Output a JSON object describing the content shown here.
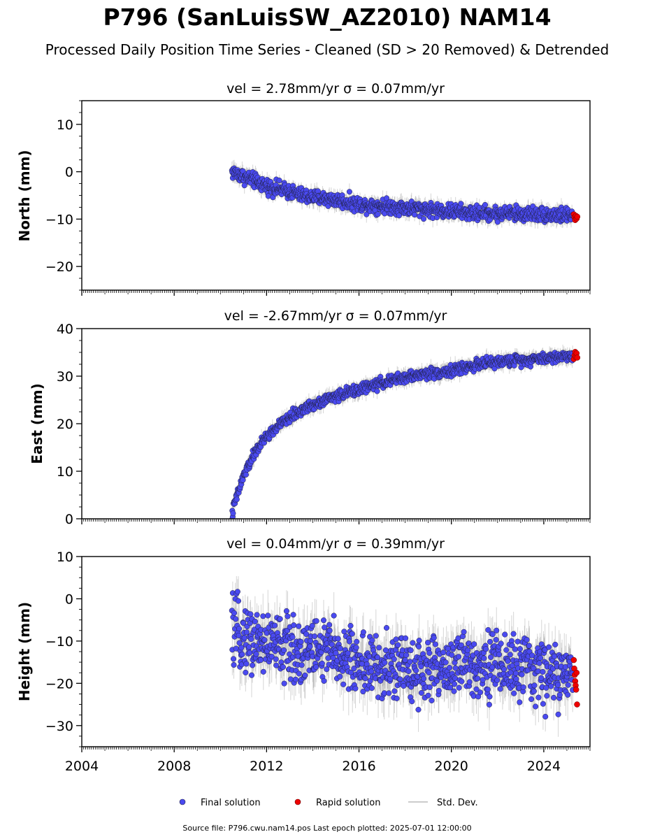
{
  "title": "P796 (SanLuisSW_AZ2010) NAM14",
  "subtitle": "Processed Daily Position Time Series - Cleaned (SD > 20 Removed) & Detrended",
  "footer": "Source file: P796.cwu.nam14.pos  Last epoch plotted: 2025-07-01 12:00:00",
  "legend": [
    {
      "label": "Final solution",
      "color": "#4a4af0",
      "kind": "dot"
    },
    {
      "label": "Rapid solution",
      "color": "#ee0000",
      "kind": "dot"
    },
    {
      "label": "Std. Dev.",
      "color": "#cccccc",
      "kind": "line"
    }
  ],
  "colors": {
    "final": "#4a4af0",
    "rapid": "#ee0000",
    "stddev": "#888888",
    "marker_edge": "#202040"
  },
  "chart_data": [
    {
      "type": "scatter",
      "panel_title": "vel = 2.78mm/yr   σ = 0.07mm/yr",
      "ylabel": "North (mm)",
      "xlim": [
        2004,
        2026
      ],
      "ylim": [
        -25,
        15
      ],
      "yticks": [
        10,
        0,
        -10,
        -20
      ],
      "ytick_labels": [
        "10",
        "0",
        "−10",
        "−20"
      ],
      "xticks": [
        2004,
        2008,
        2012,
        2016,
        2020,
        2024
      ],
      "show_xticklabels": false,
      "final_series": {
        "name": "Final solution",
        "x": [
          2010.5,
          2011.0,
          2011.5,
          2012.0,
          2012.5,
          2013.0,
          2013.5,
          2014.0,
          2014.5,
          2015.0,
          2015.5,
          2016.0,
          2016.5,
          2017.0,
          2017.5,
          2018.0,
          2018.5,
          2019.0,
          2019.5,
          2020.0,
          2020.5,
          2021.0,
          2021.5,
          2022.0,
          2022.5,
          2023.0,
          2023.5,
          2024.0,
          2024.5,
          2025.0,
          2025.25
        ],
        "y": [
          0.0,
          -1.0,
          -2.0,
          -3.0,
          -3.6,
          -4.2,
          -5.0,
          -5.4,
          -5.6,
          -6.0,
          -6.4,
          -6.9,
          -7.0,
          -7.2,
          -7.4,
          -7.6,
          -7.8,
          -8.0,
          -8.2,
          -8.3,
          -8.6,
          -8.8,
          -8.7,
          -8.9,
          -8.7,
          -9.0,
          -8.8,
          -9.0,
          -9.1,
          -9.2,
          -9.3
        ],
        "spread": 1.1,
        "sd": 1.4
      },
      "rapid_series": {
        "name": "Rapid solution",
        "x": [
          2025.3,
          2025.33,
          2025.36,
          2025.39,
          2025.42,
          2025.45
        ],
        "y": [
          -9.0,
          -9.6,
          -10.2,
          -9.3,
          -9.9,
          -9.5
        ]
      }
    },
    {
      "type": "scatter",
      "panel_title": "vel = -2.67mm/yr   σ = 0.07mm/yr",
      "ylabel": "East (mm)",
      "xlim": [
        2004,
        2026
      ],
      "ylim": [
        0,
        40
      ],
      "yticks": [
        0,
        10,
        20,
        30,
        40
      ],
      "ytick_labels": [
        "0",
        "10",
        "20",
        "30",
        "40"
      ],
      "xticks": [
        2004,
        2008,
        2012,
        2016,
        2020,
        2024
      ],
      "show_xticklabels": false,
      "final_series": {
        "name": "Final solution",
        "x": [
          2010.5,
          2010.6,
          2010.8,
          2011.0,
          2011.3,
          2011.6,
          2012.0,
          2012.5,
          2013.0,
          2013.5,
          2014.0,
          2014.5,
          2015.0,
          2015.5,
          2016.0,
          2016.5,
          2017.0,
          2017.5,
          2018.0,
          2018.5,
          2019.0,
          2019.5,
          2020.0,
          2020.5,
          2021.0,
          2021.5,
          2022.0,
          2022.5,
          2023.0,
          2023.5,
          2024.0,
          2024.5,
          2025.0,
          2025.25
        ],
        "y": [
          0.5,
          3.0,
          6.0,
          9.0,
          12.0,
          14.8,
          17.3,
          19.5,
          21.3,
          22.8,
          24.0,
          25.0,
          25.8,
          26.5,
          27.2,
          27.9,
          28.6,
          29.2,
          29.7,
          30.2,
          30.6,
          30.8,
          31.0,
          31.8,
          32.3,
          32.7,
          33.0,
          33.2,
          33.4,
          33.6,
          33.8,
          34.0,
          34.2,
          34.3
        ],
        "spread": 0.8,
        "sd": 1.3
      },
      "rapid_series": {
        "name": "Rapid solution",
        "x": [
          2025.3,
          2025.33,
          2025.36,
          2025.39,
          2025.42,
          2025.45
        ],
        "y": [
          33.6,
          34.4,
          35.1,
          34.0,
          34.8,
          33.9
        ]
      }
    },
    {
      "type": "scatter",
      "panel_title": "vel = 0.04mm/yr   σ = 0.39mm/yr",
      "ylabel": "Height (mm)",
      "xlim": [
        2004,
        2026
      ],
      "ylim": [
        -35,
        10
      ],
      "yticks": [
        10,
        0,
        -10,
        -20,
        -30
      ],
      "ytick_labels": [
        "10",
        "0",
        "−10",
        "−20",
        "−30"
      ],
      "xticks": [
        2004,
        2008,
        2012,
        2016,
        2020,
        2024
      ],
      "xtick_labels": [
        "2004",
        "2008",
        "2012",
        "2016",
        "2020",
        "2024"
      ],
      "show_xticklabels": true,
      "final_series": {
        "name": "Final solution",
        "x": [
          2010.5,
          2011.0,
          2011.5,
          2012.0,
          2012.5,
          2013.0,
          2013.5,
          2014.0,
          2014.5,
          2015.0,
          2015.5,
          2016.0,
          2016.5,
          2017.0,
          2017.5,
          2018.0,
          2018.5,
          2019.0,
          2019.5,
          2020.0,
          2020.5,
          2021.0,
          2021.5,
          2022.0,
          2022.5,
          2023.0,
          2023.5,
          2024.0,
          2024.5,
          2025.0,
          2025.25
        ],
        "y": [
          -8.0,
          -9.0,
          -10.0,
          -10.5,
          -11.0,
          -12.0,
          -12.5,
          -12.0,
          -12.5,
          -13.0,
          -14.0,
          -15.0,
          -16.0,
          -17.0,
          -16.5,
          -16.0,
          -16.5,
          -17.0,
          -16.5,
          -16.0,
          -15.5,
          -15.5,
          -15.0,
          -15.5,
          -16.0,
          -16.5,
          -17.0,
          -17.5,
          -18.0,
          -18.5,
          -19.0
        ],
        "spread": 5.5,
        "sd": 4.5
      },
      "rapid_series": {
        "name": "Rapid solution",
        "x": [
          2025.3,
          2025.32,
          2025.34,
          2025.36,
          2025.38,
          2025.4,
          2025.42,
          2025.44
        ],
        "y": [
          -14.5,
          -16.5,
          -18.0,
          -19.5,
          -20.5,
          -21.5,
          -17.5,
          -25.0
        ]
      }
    }
  ]
}
